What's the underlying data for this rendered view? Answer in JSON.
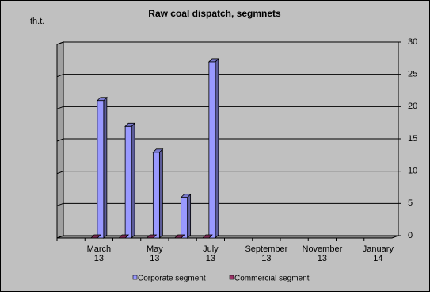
{
  "chart_data": {
    "type": "bar3d",
    "title": "Raw coal dispatch, segmnets",
    "y_label": "th.t.",
    "categories": [
      null,
      "March 13",
      null,
      "May 13",
      null,
      "July 13",
      null,
      "September 13",
      null,
      "November 13",
      null,
      "January 14"
    ],
    "series": [
      {
        "name": "Corporate segment",
        "color": "#9999ff",
        "values": [
          null,
          21.3,
          17.3,
          13.3,
          6.3,
          27.3,
          null,
          null,
          null,
          null,
          null,
          null
        ]
      },
      {
        "name": "Commercial segment",
        "color": "#993366",
        "values": [
          null,
          0,
          0,
          0,
          0,
          0,
          null,
          null,
          null,
          null,
          null,
          null
        ]
      }
    ],
    "ylim": [
      0,
      30
    ],
    "yticks": [
      0,
      5,
      10,
      15,
      20,
      25,
      30
    ],
    "grid": true,
    "legend": "bottom"
  }
}
